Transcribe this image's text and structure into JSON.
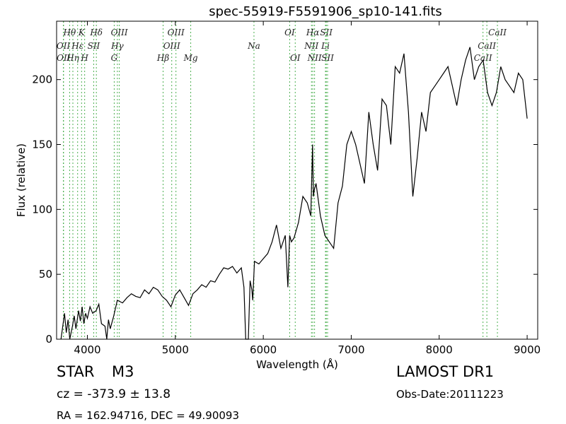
{
  "chart_data": {
    "type": "line",
    "title": "spec-55919-F5591906_sp10-141.fits",
    "xlabel": "Wavelength (Å)",
    "ylabel": "Flux (relative)",
    "xlim": [
      3650,
      9120
    ],
    "ylim": [
      0,
      245
    ],
    "xticks": [
      4000,
      5000,
      6000,
      7000,
      8000,
      9000
    ],
    "yticks": [
      0,
      50,
      100,
      150,
      200
    ],
    "grid": false,
    "series": [
      {
        "color": "#000000",
        "x": [
          3700,
          3740,
          3760,
          3780,
          3800,
          3830,
          3850,
          3870,
          3900,
          3920,
          3940,
          3960,
          3980,
          4000,
          4030,
          4060,
          4100,
          4130,
          4160,
          4200,
          4220,
          4240,
          4260,
          4300,
          4340,
          4400,
          4450,
          4500,
          4550,
          4600,
          4650,
          4700,
          4750,
          4800,
          4850,
          4900,
          4950,
          5000,
          5050,
          5100,
          5150,
          5200,
          5250,
          5300,
          5350,
          5400,
          5450,
          5500,
          5550,
          5600,
          5650,
          5700,
          5750,
          5780,
          5800,
          5830,
          5850,
          5870,
          5880,
          5900,
          5950,
          6000,
          6050,
          6100,
          6150,
          6200,
          6250,
          6280,
          6300,
          6320,
          6350,
          6400,
          6450,
          6500,
          6540,
          6560,
          6570,
          6580,
          6600,
          6650,
          6700,
          6750,
          6800,
          6850,
          6900,
          6950,
          7000,
          7050,
          7100,
          7150,
          7200,
          7250,
          7300,
          7350,
          7400,
          7450,
          7500,
          7550,
          7600,
          7650,
          7700,
          7750,
          7800,
          7850,
          7900,
          7950,
          8000,
          8050,
          8100,
          8150,
          8200,
          8250,
          8300,
          8350,
          8400,
          8450,
          8500,
          8550,
          8600,
          8650,
          8700,
          8750,
          8800,
          8850,
          8900,
          8950,
          9000
        ],
        "y": [
          0,
          20,
          5,
          15,
          0,
          10,
          18,
          8,
          22,
          14,
          25,
          12,
          20,
          16,
          25,
          20,
          22,
          27,
          12,
          10,
          0,
          15,
          8,
          18,
          30,
          28,
          32,
          35,
          33,
          32,
          38,
          35,
          40,
          38,
          33,
          30,
          25,
          34,
          38,
          32,
          26,
          35,
          38,
          42,
          40,
          45,
          44,
          50,
          55,
          54,
          56,
          51,
          55,
          40,
          0,
          0,
          45,
          38,
          30,
          60,
          58,
          62,
          66,
          75,
          88,
          70,
          80,
          40,
          80,
          75,
          78,
          90,
          110,
          105,
          95,
          150,
          110,
          115,
          120,
          95,
          80,
          75,
          70,
          105,
          118,
          150,
          160,
          150,
          135,
          120,
          175,
          150,
          130,
          185,
          180,
          150,
          210,
          205,
          220,
          175,
          110,
          140,
          175,
          160,
          190,
          195,
          200,
          205,
          210,
          195,
          180,
          200,
          215,
          225,
          200,
          210,
          215,
          190,
          180,
          190,
          210,
          200,
          195,
          190,
          205,
          200,
          170
        ]
      }
    ],
    "spectral_lines": [
      {
        "label": "OII",
        "x": 3727,
        "row": 2
      },
      {
        "label": "OII",
        "x": 3729,
        "row": 3
      },
      {
        "label": "Hθ",
        "x": 3798,
        "row": 1
      },
      {
        "label": "Hη",
        "x": 3835,
        "row": 3
      },
      {
        "label": "Hε",
        "x": 3889,
        "row": 2
      },
      {
        "label": "K",
        "x": 3934,
        "row": 1
      },
      {
        "label": "H",
        "x": 3969,
        "row": 3
      },
      {
        "label": "SII",
        "x": 4072,
        "row": 2
      },
      {
        "label": "Hδ",
        "x": 4102,
        "row": 1
      },
      {
        "label": "OIII",
        "x": 4363,
        "row": 1
      },
      {
        "label": "Hγ",
        "x": 4341,
        "row": 2
      },
      {
        "label": "G",
        "x": 4305,
        "row": 3
      },
      {
        "label": "Hβ",
        "x": 4861,
        "row": 3
      },
      {
        "label": "OIII",
        "x": 4959,
        "row": 2
      },
      {
        "label": "OIII",
        "x": 5007,
        "row": 1
      },
      {
        "label": "Mg",
        "x": 5175,
        "row": 3
      },
      {
        "label": "Na",
        "x": 5894,
        "row": 2
      },
      {
        "label": "OI",
        "x": 6300,
        "row": 1
      },
      {
        "label": "OI",
        "x": 6363,
        "row": 3
      },
      {
        "label": "NII",
        "x": 6548,
        "row": 2
      },
      {
        "label": "Hα",
        "x": 6563,
        "row": 1
      },
      {
        "label": "NII",
        "x": 6583,
        "row": 3
      },
      {
        "label": "Li",
        "x": 6707,
        "row": 2
      },
      {
        "label": "SII",
        "x": 6716,
        "row": 1
      },
      {
        "label": "SII",
        "x": 6731,
        "row": 3
      },
      {
        "label": "CaII",
        "x": 8498,
        "row": 3
      },
      {
        "label": "CaII",
        "x": 8542,
        "row": 2
      },
      {
        "label": "CaII",
        "x": 8662,
        "row": 1
      }
    ]
  },
  "info": {
    "class": "STAR",
    "subclass": "M3",
    "survey": "LAMOST DR1",
    "cz": "cz = -373.9 ± 13.8",
    "obs_date": "Obs-Date:20111223",
    "radec": "RA = 162.94716, DEC = 49.90093"
  }
}
